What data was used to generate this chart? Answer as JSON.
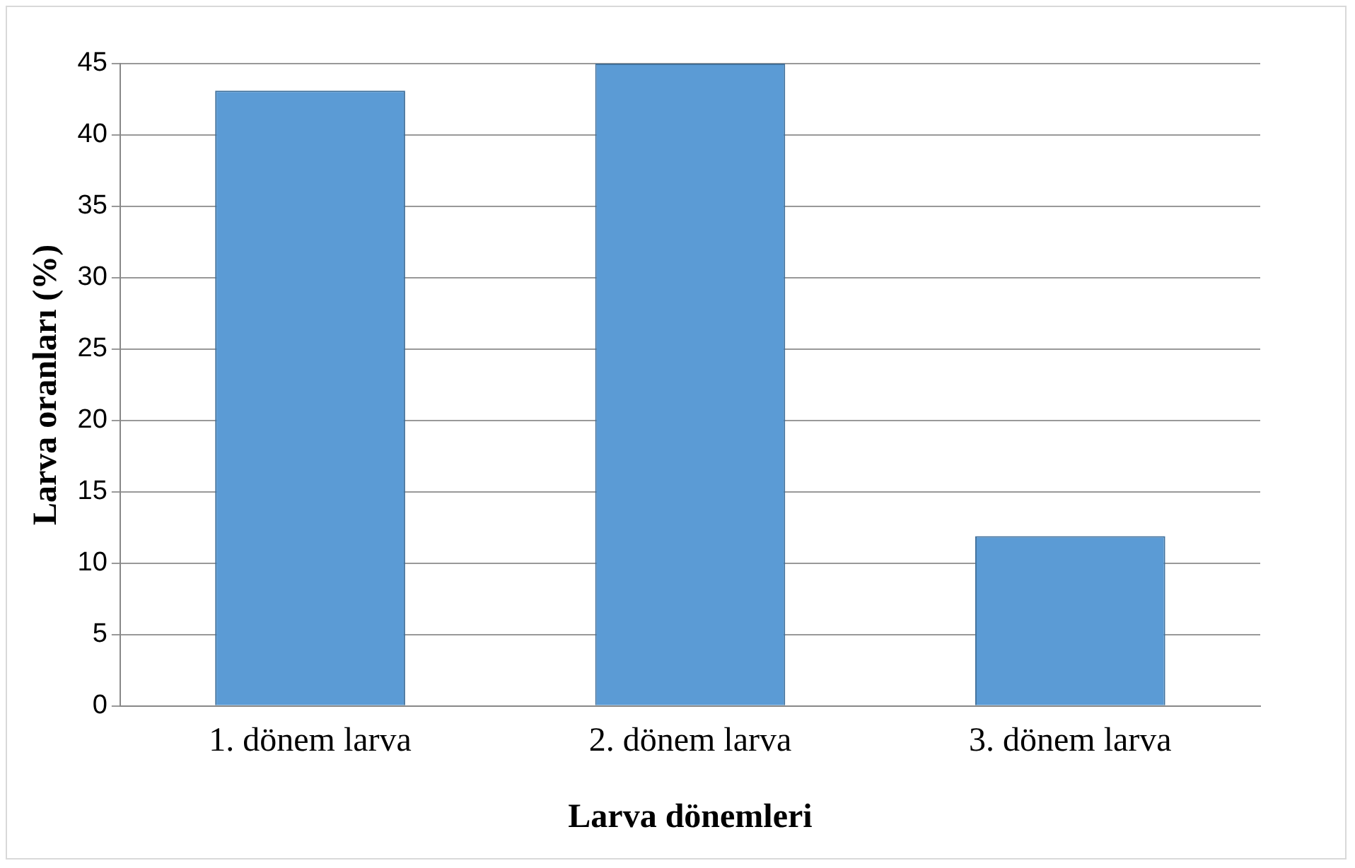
{
  "chart_data": {
    "type": "bar",
    "xlabel": "Larva dönemleri",
    "ylabel": "Larva oranları (%)",
    "categories": [
      "1. dönem larva",
      "2. dönem larva",
      "3. dönem larva"
    ],
    "values": [
      43.1,
      45,
      11.9
    ],
    "color": "#5b9bd5",
    "ylim": [
      0,
      45
    ],
    "yticks": [
      0,
      5,
      10,
      15,
      20,
      25,
      30,
      35,
      40,
      45
    ],
    "grid": "y"
  }
}
